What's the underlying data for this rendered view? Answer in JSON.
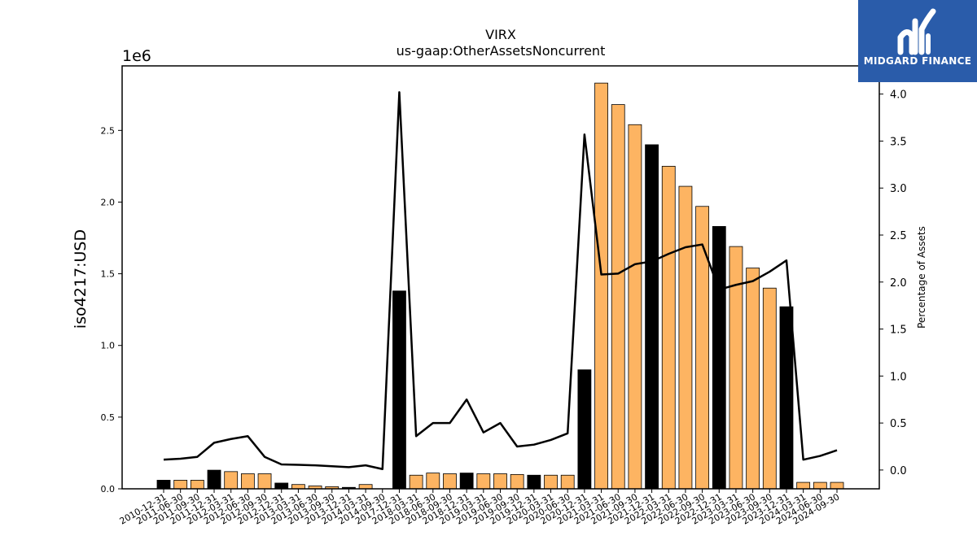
{
  "logo": {
    "text": "MIDGARD FINANCE",
    "background": "#2a5caa"
  },
  "chart_data": {
    "type": "bar",
    "title": "VIRX",
    "subtitle": "us-gaap:OtherAssetsNoncurrent",
    "ylabel": "iso4217:USD",
    "y_offset_label": "1e6",
    "y2label": "Percentage of Assets",
    "ylim": [
      0,
      2950000
    ],
    "y2lim": [
      -0.2,
      4.3
    ],
    "yticks": [
      0.0,
      0.5,
      1.0,
      1.5,
      2.0,
      2.5
    ],
    "y2ticks": [
      0.0,
      0.5,
      1.0,
      1.5,
      2.0,
      2.5,
      3.0,
      3.5,
      4.0
    ],
    "colors": {
      "annual": "#000000",
      "quarterly": "#fdb462",
      "line": "#000000"
    },
    "categories": [
      "2010-12-31",
      "2011-06-30",
      "2011-09-30",
      "2011-12-31",
      "2012-03-31",
      "2012-06-30",
      "2012-09-30",
      "2012-12-31",
      "2013-03-31",
      "2013-06-30",
      "2013-09-30",
      "2013-12-31",
      "2014-03-31",
      "2014-09-30",
      "2017-12-31",
      "2018-03-31",
      "2018-06-30",
      "2018-09-30",
      "2018-12-31",
      "2019-03-31",
      "2019-06-30",
      "2019-09-30",
      "2019-12-31",
      "2020-03-31",
      "2020-06-30",
      "2020-12-31",
      "2021-03-31",
      "2021-06-30",
      "2021-09-30",
      "2021-12-31",
      "2022-03-31",
      "2022-06-30",
      "2022-09-30",
      "2022-12-31",
      "2023-03-31",
      "2023-06-30",
      "2023-09-30",
      "2023-12-31",
      "2024-03-31",
      "2024-06-30",
      "2024-09-30"
    ],
    "series": [
      {
        "kind": "bar",
        "values": [
          60000,
          60000,
          60000,
          130000,
          120000,
          105000,
          105000,
          40000,
          30000,
          20000,
          15000,
          10000,
          30000,
          0,
          1380000,
          95000,
          110000,
          105000,
          110000,
          105000,
          105000,
          100000,
          95000,
          95000,
          95000,
          830000,
          2830000,
          2680000,
          2540000,
          2400000,
          2250000,
          2110000,
          1970000,
          1830000,
          1690000,
          1540000,
          1400000,
          1270000,
          45000,
          45000,
          45000
        ],
        "annual": [
          true,
          false,
          false,
          true,
          false,
          false,
          false,
          true,
          false,
          false,
          false,
          true,
          false,
          false,
          true,
          false,
          false,
          false,
          true,
          false,
          false,
          false,
          true,
          false,
          false,
          true,
          false,
          false,
          false,
          true,
          false,
          false,
          false,
          true,
          false,
          false,
          false,
          true,
          false,
          false,
          false
        ]
      },
      {
        "kind": "line",
        "axis": "right",
        "values": [
          0.11,
          0.12,
          0.14,
          0.29,
          0.33,
          0.36,
          0.14,
          0.06,
          0.055,
          0.05,
          0.04,
          0.03,
          0.05,
          0.01,
          4.02,
          0.36,
          0.5,
          0.5,
          0.75,
          0.4,
          0.5,
          0.25,
          0.27,
          0.32,
          0.39,
          3.57,
          2.08,
          2.09,
          2.19,
          2.22,
          2.3,
          2.37,
          2.4,
          1.92,
          1.97,
          2.01,
          2.11,
          2.23,
          0.11,
          0.15,
          0.21
        ]
      }
    ]
  }
}
